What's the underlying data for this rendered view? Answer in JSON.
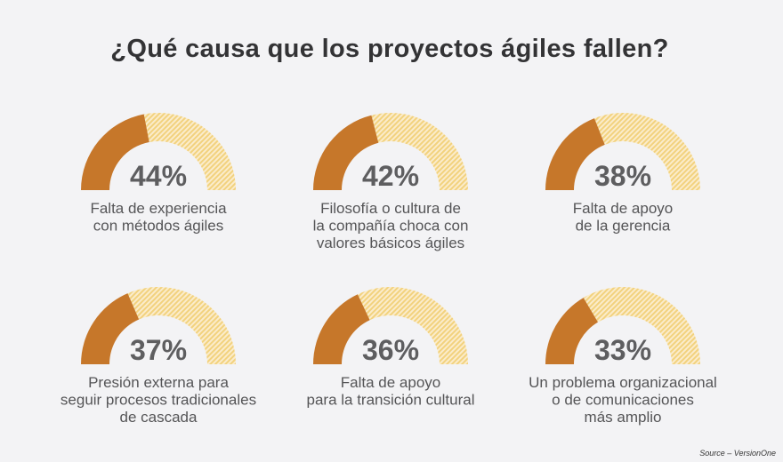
{
  "colors": {
    "background": "#f3f3f5",
    "filled": "#c6772a",
    "hatch_a": "#f2d27e",
    "hatch_b": "#fbeccb",
    "title": "#333335",
    "text": "#555557"
  },
  "chart_data": {
    "type": "gauge",
    "title": "¿Qué causa que los proyectos ágiles fallen?",
    "source": "Source – VersionOne",
    "unit": "%",
    "max": 100,
    "items": [
      {
        "value": 44,
        "display": "44%",
        "label_lines": [
          "Falta de experiencia",
          "con métodos ágiles"
        ]
      },
      {
        "value": 42,
        "display": "42%",
        "label_lines": [
          "Filosofía o cultura de",
          "la compañía choca con",
          "valores básicos ágiles"
        ]
      },
      {
        "value": 38,
        "display": "38%",
        "label_lines": [
          "Falta de apoyo",
          "de la gerencia"
        ]
      },
      {
        "value": 37,
        "display": "37%",
        "label_lines": [
          "Presión externa para",
          "seguir procesos tradicionales",
          "de cascada"
        ]
      },
      {
        "value": 36,
        "display": "36%",
        "label_lines": [
          "Falta de apoyo",
          "para la transición cultural"
        ]
      },
      {
        "value": 33,
        "display": "33%",
        "label_lines": [
          "Un problema organizacional",
          "o de comunicaciones",
          "más amplio"
        ]
      }
    ]
  }
}
